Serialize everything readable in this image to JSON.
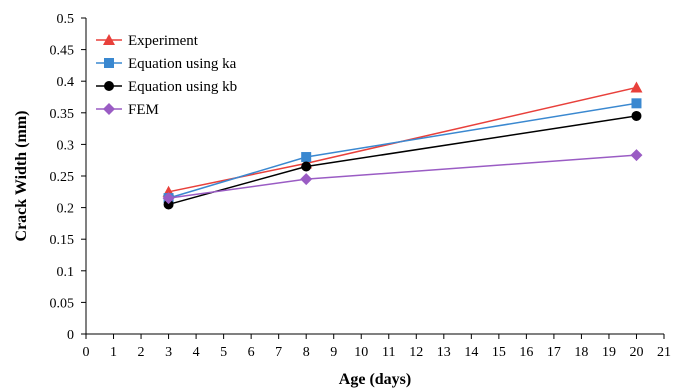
{
  "chart_data": {
    "type": "line",
    "title": "",
    "xlabel": "Age (days)",
    "ylabel": "Crack Width (mm)",
    "xlim": [
      0,
      21
    ],
    "ylim": [
      0,
      0.5
    ],
    "x_ticks": [
      "0",
      "1",
      "2",
      "3",
      "4",
      "5",
      "6",
      "7",
      "8",
      "9",
      "10",
      "11",
      "12",
      "13",
      "14",
      "15",
      "16",
      "17",
      "18",
      "19",
      "20",
      "21"
    ],
    "y_ticks": [
      "0",
      "0.05",
      "0.1",
      "0.15",
      "0.2",
      "0.25",
      "0.3",
      "0.35",
      "0.4",
      "0.45",
      "0.5"
    ],
    "grid": false,
    "legend_position": "top-left",
    "series": [
      {
        "name": "Experiment",
        "color": "#e8403b",
        "marker": "triangle",
        "x": [
          3,
          8,
          20
        ],
        "y": [
          0.225,
          0.27,
          0.39
        ]
      },
      {
        "name": "Equation using ka",
        "color": "#3a88d0",
        "marker": "square",
        "x": [
          3,
          8,
          20
        ],
        "y": [
          0.215,
          0.28,
          0.365
        ]
      },
      {
        "name": "Equation using kb",
        "color": "#000000",
        "marker": "circle",
        "x": [
          3,
          8,
          20
        ],
        "y": [
          0.205,
          0.265,
          0.345
        ]
      },
      {
        "name": "FEM",
        "color": "#9a5cc4",
        "marker": "diamond",
        "x": [
          3,
          8,
          20
        ],
        "y": [
          0.215,
          0.245,
          0.283
        ]
      }
    ]
  }
}
